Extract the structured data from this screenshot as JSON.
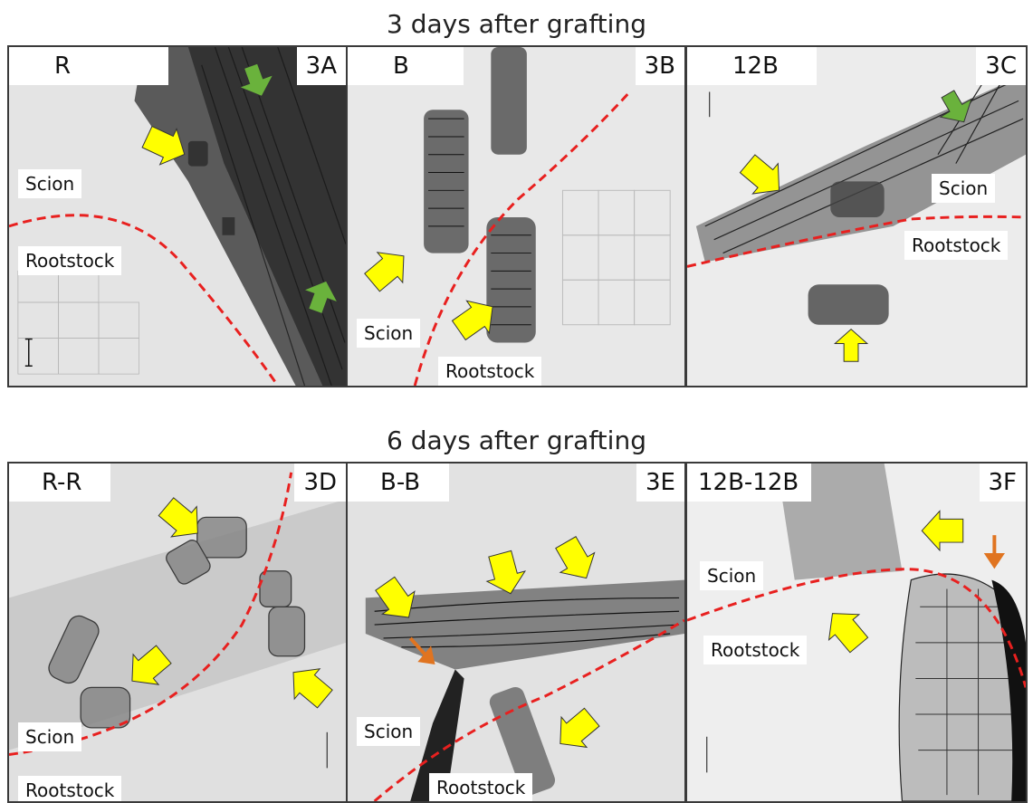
{
  "rows": [
    {
      "title": "3 days after grafting",
      "panels": [
        {
          "variety": "R",
          "code": "3A",
          "scion": "Scion",
          "rootstock": "Rootstock"
        },
        {
          "variety": "B",
          "code": "3B",
          "scion": "Scion",
          "rootstock": "Rootstock"
        },
        {
          "variety": "12B",
          "code": "3C",
          "scion": "Scion",
          "rootstock": "Rootstock"
        }
      ]
    },
    {
      "title": "6 days after grafting",
      "panels": [
        {
          "variety": "R-R",
          "code": "3D",
          "scion": "Scion",
          "rootstock": "Rootstock"
        },
        {
          "variety": "B-B",
          "code": "3E",
          "scion": "Scion",
          "rootstock": "Rootstock"
        },
        {
          "variety": "12B-12B",
          "code": "3F",
          "scion": "Scion",
          "rootstock": "Rootstock"
        }
      ]
    }
  ],
  "colors": {
    "union_line": "#e8201f",
    "arrow_yellow": "#ffff00",
    "arrow_green": "#6ab23c",
    "arrow_orange": "#e07420",
    "tissue_light": "#e6e6e6",
    "tissue_dark": "#2a2a2a"
  },
  "icons": [
    "yellow-arrow-icon",
    "green-arrow-icon",
    "orange-arrow-icon",
    "scale-bar-icon"
  ]
}
